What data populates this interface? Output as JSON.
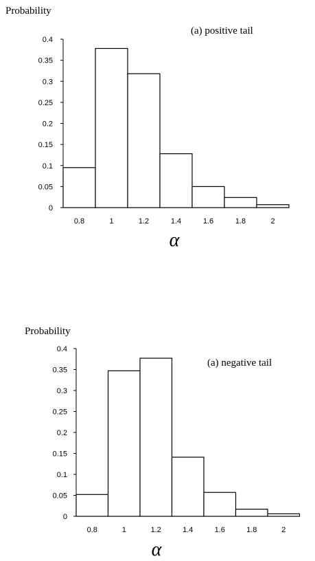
{
  "chart_data": [
    {
      "type": "bar",
      "title": "(a) positive tail",
      "ylabel": "Probability",
      "xlabel": "α",
      "categories": [
        "0.8",
        "1",
        "1.2",
        "1.4",
        "1.6",
        "1.8",
        "2"
      ],
      "values": [
        0.095,
        0.378,
        0.318,
        0.128,
        0.05,
        0.024,
        0.007
      ],
      "ylim": [
        0,
        0.4
      ],
      "yticks": [
        "0",
        "0.05",
        "0.1",
        "0.15",
        "0.2",
        "0.25",
        "0.3",
        "0.35",
        "0.4"
      ],
      "grid": false,
      "legend": "none"
    },
    {
      "type": "bar",
      "title": "(a) negative tail",
      "ylabel": "Probability",
      "xlabel": "α",
      "categories": [
        "0.8",
        "1",
        "1.2",
        "1.4",
        "1.6",
        "1.8",
        "2"
      ],
      "values": [
        0.052,
        0.347,
        0.377,
        0.141,
        0.057,
        0.017,
        0.006
      ],
      "ylim": [
        0,
        0.4
      ],
      "yticks": [
        "0",
        "0.05",
        "0.1",
        "0.15",
        "0.2",
        "0.25",
        "0.3",
        "0.35",
        "0.4"
      ],
      "grid": false,
      "legend": "none"
    }
  ]
}
